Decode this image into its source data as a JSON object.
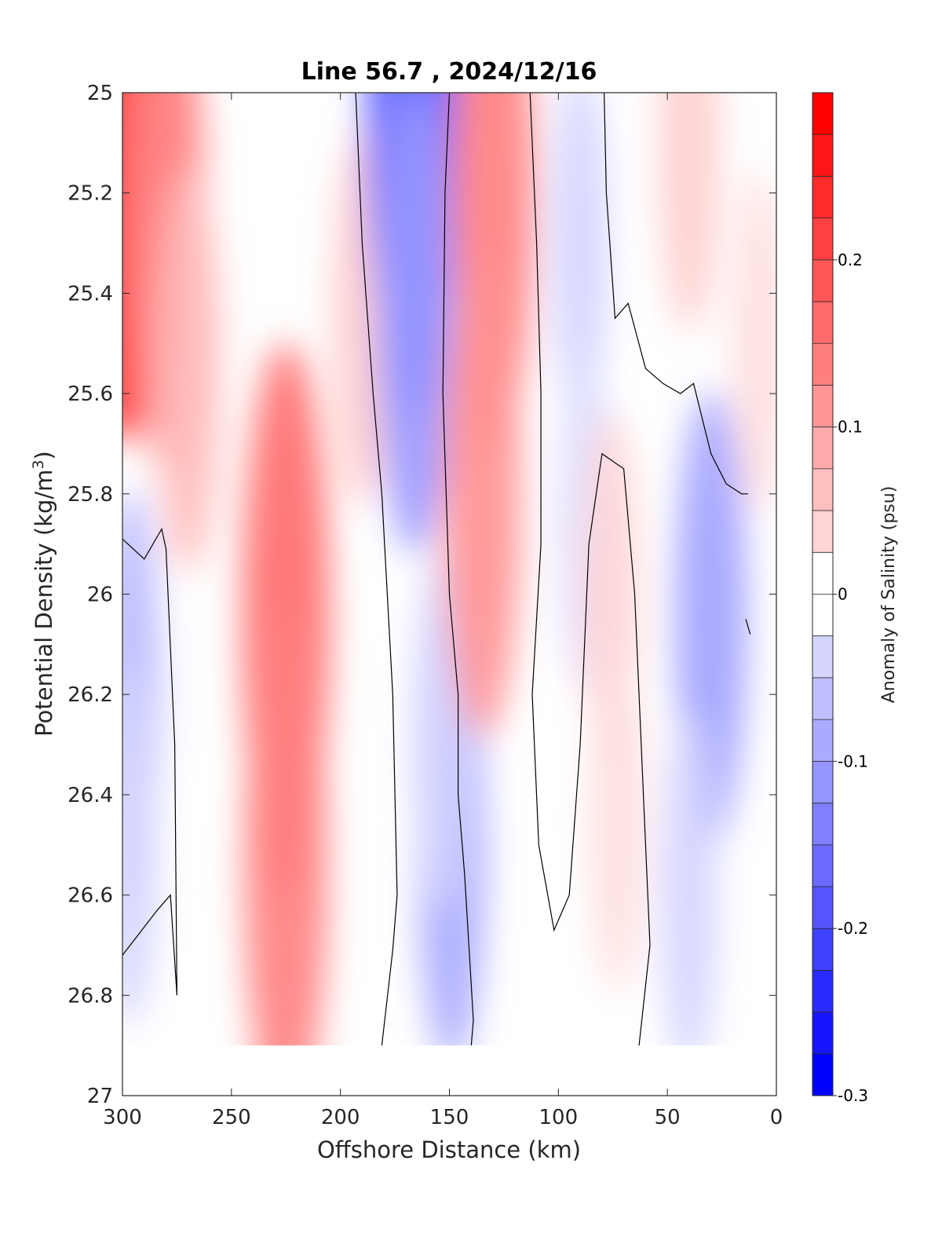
{
  "chart_data": {
    "type": "contour",
    "title": "Line 56.7 , 2024/12/16",
    "xlabel": "Offshore Distance (km)",
    "ylabel": "Potential Density (kg/m",
    "ylabel_superscript": "3",
    "ylabel_suffix": ")",
    "xlim": [
      300,
      0
    ],
    "ylim": [
      25,
      27
    ],
    "y_direction": "reversed",
    "xticks": [
      "300",
      "250",
      "200",
      "150",
      "100",
      "50",
      "0"
    ],
    "yticks": [
      "25",
      "25.2",
      "25.4",
      "25.6",
      "25.8",
      "26",
      "26.2",
      "26.4",
      "26.6",
      "26.8",
      "27"
    ],
    "colorbar": {
      "label": "Anomaly of Salinity (psu)",
      "range": [
        -0.3,
        0.3
      ],
      "step": 0.025,
      "tick_values": [
        0.2,
        0.1,
        0,
        -0.1,
        -0.2,
        -0.3
      ],
      "tick_labels": [
        "0.2",
        "0.1",
        "0",
        "-0.1",
        "-0.2",
        "-0.3"
      ],
      "max_color": "#ff0000",
      "min_color": "#0000ff",
      "zero_color": "#ffffff"
    },
    "zero_contour_color": "#000000",
    "anomaly_features": [
      {
        "center": [
          300,
          25.0
        ],
        "value": 0.26
      },
      {
        "center": [
          280,
          25.25
        ],
        "value": 0.14
      },
      {
        "center": [
          270,
          25.55
        ],
        "value": 0.08
      },
      {
        "center": [
          225,
          26.05
        ],
        "value": 0.17
      },
      {
        "center": [
          225,
          26.55
        ],
        "value": 0.15
      },
      {
        "center": [
          190,
          25.45
        ],
        "value": 0.06
      },
      {
        "center": [
          297,
          26.2
        ],
        "value": -0.08
      },
      {
        "center": [
          297,
          26.5
        ],
        "value": -0.05
      },
      {
        "center": [
          166,
          25.05
        ],
        "value": -0.2
      },
      {
        "center": [
          166,
          25.45
        ],
        "value": -0.12
      },
      {
        "center": [
          149,
          26.5
        ],
        "value": -0.1
      },
      {
        "center": [
          154,
          26.28
        ],
        "value": -0.05
      },
      {
        "center": [
          130,
          25.2
        ],
        "value": 0.15
      },
      {
        "center": [
          135,
          25.8
        ],
        "value": 0.13
      },
      {
        "center": [
          90,
          25.3
        ],
        "value": -0.05
      },
      {
        "center": [
          88,
          25.85
        ],
        "value": -0.04
      },
      {
        "center": [
          76,
          26.0
        ],
        "value": 0.05
      },
      {
        "center": [
          73,
          26.45
        ],
        "value": 0.04
      },
      {
        "center": [
          30,
          26.05
        ],
        "value": -0.11
      },
      {
        "center": [
          40,
          26.6
        ],
        "value": -0.05
      },
      {
        "center": [
          40,
          25.1
        ],
        "value": 0.06
      },
      {
        "center": [
          8,
          25.5
        ],
        "value": 0.04
      }
    ]
  }
}
